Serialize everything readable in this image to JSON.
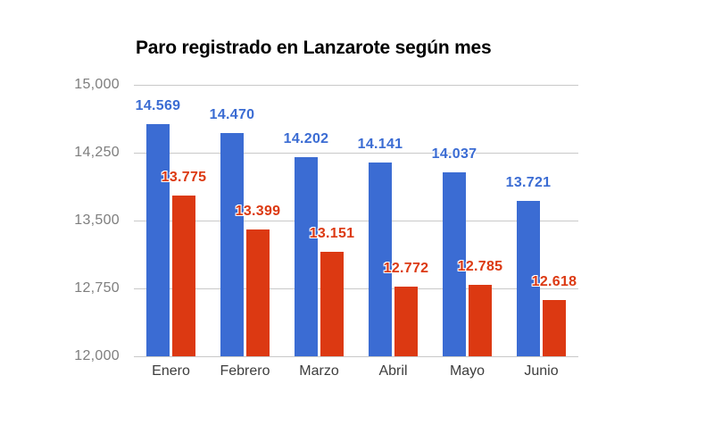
{
  "chart_data": {
    "type": "bar",
    "title": "Paro registrado en Lanzarote según mes",
    "categories": [
      "Enero",
      "Febrero",
      "Marzo",
      "Abril",
      "Mayo",
      "Junio"
    ],
    "series": [
      {
        "name": "series-blue",
        "color": "#3b6cd3",
        "values": [
          14569,
          14470,
          14202,
          14141,
          14037,
          13721
        ],
        "labels": [
          "14.569",
          "14.470",
          "14.202",
          "14.141",
          "14.037",
          "13.721"
        ]
      },
      {
        "name": "series-red",
        "color": "#dc3912",
        "values": [
          13775,
          13399,
          13151,
          12772,
          12785,
          12618
        ],
        "labels": [
          "13.775",
          "13.399",
          "13.151",
          "12.772",
          "12.785",
          "12.618"
        ]
      }
    ],
    "ylim": [
      12000,
      15000
    ],
    "yticks": [
      {
        "value": 15000,
        "label": "15,000"
      },
      {
        "value": 14250,
        "label": "14,250"
      },
      {
        "value": 13500,
        "label": "13,500"
      },
      {
        "value": 12750,
        "label": "12,750"
      },
      {
        "value": 12000,
        "label": "12,000"
      }
    ],
    "grid": true,
    "legend": "none",
    "colors": {
      "grid": "#c9c9c9",
      "y_label": "#7e7e7e",
      "x_label": "#3d3d3d",
      "title": "#000000",
      "background": "#ffffff"
    }
  }
}
